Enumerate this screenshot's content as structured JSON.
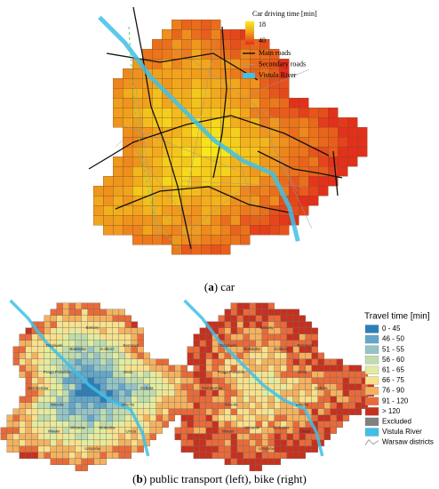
{
  "panel_a": {
    "legend": {
      "title": "Car driving time [min]",
      "min_label": "18",
      "max_label": "40",
      "colors": [
        "#f7ec1c",
        "#f09a1e",
        "#e2301c"
      ],
      "items": [
        {
          "label": "Main roads",
          "color": "#111111"
        },
        {
          "label": "Secondary roads",
          "color": "#9a9a9a"
        },
        {
          "label": "Vistula River",
          "color": "#3fc0e8"
        }
      ]
    },
    "caption": {
      "open": "(",
      "letter": "a",
      "text": ") car"
    }
  },
  "panel_b": {
    "legend": {
      "title": "Travel time [min]",
      "items": [
        {
          "label": "0 - 45",
          "color": "#2c7fb8"
        },
        {
          "label": "46 - 50",
          "color": "#62a6c9"
        },
        {
          "label": "51 - 55",
          "color": "#93c4c6"
        },
        {
          "label": "56 - 60",
          "color": "#bedcae"
        },
        {
          "label": "61 - 65",
          "color": "#e3ec9e"
        },
        {
          "label": "66 - 75",
          "color": "#f8e08c"
        },
        {
          "label": "76 - 90",
          "color": "#f5b15e"
        },
        {
          "label": "91 - 120",
          "color": "#e96a38"
        },
        {
          "label": "> 120",
          "color": "#c8301e"
        },
        {
          "label": "Excluded",
          "color": "#808080"
        },
        {
          "label": "Vistula River",
          "color": "#3fc0e8"
        },
        {
          "label": "Warsaw districts",
          "color": "#8a8aa0"
        }
      ]
    },
    "caption": {
      "open": "(",
      "letter": "b",
      "text": ") public transport (left), bike (right)"
    }
  },
  "districts": [
    "Bielany",
    "Żoliborz",
    "Bemowo",
    "Wola",
    "Ochota",
    "Włochy",
    "Ursus",
    "Mokotów",
    "Ursynów",
    "Wilanów",
    "Wawer",
    "Wesoła",
    "Rembertów",
    "Praga Południe",
    "Targówek",
    "Białołęka"
  ]
}
